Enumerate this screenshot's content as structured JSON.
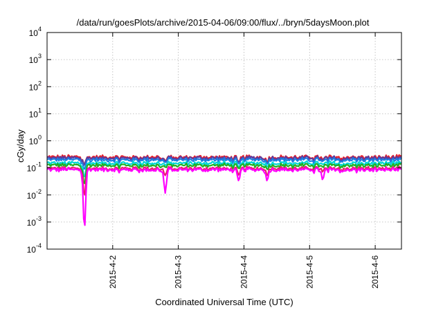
{
  "chart_data": {
    "type": "line",
    "title": "/data/run/goesPlots/archive/2015-04-06/09:00/flux/../bryn/5daysMoon.plot",
    "xlabel": "Coordinated Universal Time (UTC)",
    "ylabel": "cGy/day",
    "yscale": "log",
    "ylim": [
      0.0001,
      10000
    ],
    "xlim": [
      0,
      5.4
    ],
    "grid": true,
    "legend": "none",
    "x_ticks": [
      {
        "x": 1,
        "label": "2015-4-2"
      },
      {
        "x": 2,
        "label": "2015-4-3"
      },
      {
        "x": 3,
        "label": "2015-4-4"
      },
      {
        "x": 4,
        "label": "2015-4-5"
      },
      {
        "x": 5,
        "label": "2015-4-6"
      }
    ],
    "y_ticks": [
      {
        "value": 0.0001,
        "base": "10",
        "exp": "-4"
      },
      {
        "value": 0.001,
        "base": "10",
        "exp": "-3"
      },
      {
        "value": 0.01,
        "base": "10",
        "exp": "-2"
      },
      {
        "value": 0.1,
        "base": "10",
        "exp": "-1"
      },
      {
        "value": 1,
        "base": "10",
        "exp": "0"
      },
      {
        "value": 10,
        "base": "10",
        "exp": "1"
      },
      {
        "value": 100,
        "base": "10",
        "exp": "2"
      },
      {
        "value": 1000,
        "base": "10",
        "exp": "3"
      },
      {
        "value": 10000,
        "base": "10",
        "exp": "4"
      }
    ],
    "series": [
      {
        "color": "#e8202c",
        "baseline": 0.25
      },
      {
        "color": "#5a3ca0",
        "baseline": 0.23
      },
      {
        "color": "#1e7de0",
        "baseline": 0.2
      },
      {
        "color": "#00d7d7",
        "baseline": 0.15
      },
      {
        "color": "#20b020",
        "baseline": 0.125
      },
      {
        "color": "#e8206e",
        "baseline": 0.095
      },
      {
        "color": "#ff00ff",
        "baseline": 0.085
      }
    ],
    "dips": [
      {
        "x": 0.57,
        "values": [
          0.15,
          0.14,
          0.1,
          0.05,
          0.025,
          0.01,
          0.0006
        ]
      },
      {
        "x": 1.8,
        "values": [
          0.18,
          0.17,
          0.15,
          0.12,
          0.1,
          0.05,
          0.011
        ]
      },
      {
        "x": 2.92,
        "values": [
          0.15,
          0.14,
          0.12,
          0.1,
          0.08,
          0.05,
          0.03
        ]
      },
      {
        "x": 3.35,
        "values": [
          0.17,
          0.16,
          0.14,
          0.11,
          0.09,
          0.055,
          0.035
        ]
      },
      {
        "x": 4.2,
        "values": [
          0.2,
          0.18,
          0.16,
          0.13,
          0.1,
          0.07,
          0.035
        ]
      }
    ]
  }
}
